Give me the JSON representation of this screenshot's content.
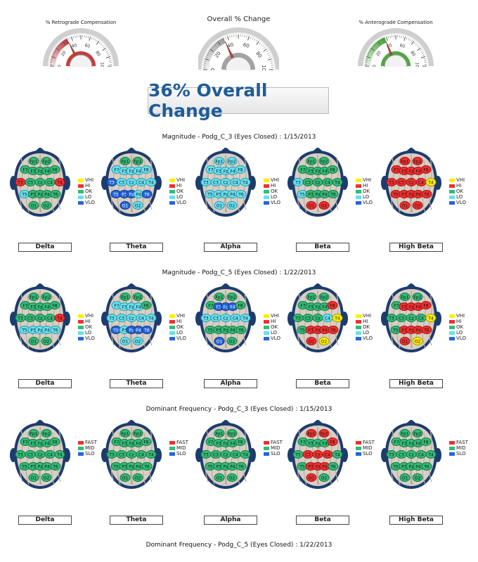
{
  "gauges": [
    {
      "id": "retro",
      "title": "% Retrograde Compensation",
      "ticks": [
        "0",
        "20",
        "40",
        "60",
        "80",
        "100"
      ],
      "value": 35,
      "color": "#c0282a"
    },
    {
      "id": "overall",
      "title": "Overall % Change",
      "ticks": [
        "0",
        "20",
        "40",
        "60",
        "80",
        "100"
      ],
      "value": 36,
      "color": "#999999"
    },
    {
      "id": "antero",
      "title": "% Anterograde Compensation",
      "ticks": [
        "0",
        "20",
        "40",
        "60",
        "80",
        "100"
      ],
      "value": 38,
      "color": "#3aa02a"
    }
  ],
  "banner": "36% Overall Change",
  "bands": [
    "Delta",
    "Theta",
    "Alpha",
    "Beta",
    "High Beta"
  ],
  "legend_mag": [
    {
      "label": "VHI",
      "color": "#ffee00"
    },
    {
      "label": "HI",
      "color": "#ee3030"
    },
    {
      "label": "OK",
      "color": "#33bb77"
    },
    {
      "label": "LO",
      "color": "#66e0f0"
    },
    {
      "label": "VLO",
      "color": "#2266dd"
    }
  ],
  "legend_freq": [
    {
      "label": "FAST",
      "color": "#ee3030"
    },
    {
      "label": "MID",
      "color": "#33bb77"
    },
    {
      "label": "SLO",
      "color": "#2266dd"
    }
  ],
  "electrodes": [
    "Fp1",
    "Fp2",
    "F7",
    "F3",
    "Fz",
    "F4",
    "F8",
    "T3",
    "C3",
    "Cz",
    "C4",
    "T4",
    "T5",
    "P3",
    "Pz",
    "P4",
    "T6",
    "O1",
    "O2"
  ],
  "sections": [
    {
      "title": "Magnitude - Podg_C_3 (Eyes Closed) : 1/15/2013",
      "legend": "mag",
      "heads": [
        {
          "state": {
            "T3": "H",
            "T4": "H",
            "T5": "L"
          }
        },
        {
          "state": {
            "F7": "L",
            "F3": "L",
            "Fz": "L",
            "F4": "L",
            "F8": "L",
            "T3": "V",
            "C3": "L",
            "Cz": "L",
            "C4": "L",
            "T4": "L",
            "T5": "V",
            "P3": "V",
            "Pz": "V",
            "P4": "L",
            "T6": "V",
            "O1": "V",
            "O2": "L"
          }
        },
        {
          "state": {
            "Fp1": "L",
            "Fp2": "L",
            "F7": "L",
            "F3": "L",
            "Fz": "L",
            "F4": "L",
            "F8": "L",
            "T3": "L",
            "C3": "L",
            "Cz": "L",
            "C4": "L",
            "T4": "L",
            "T5": "L",
            "P3": "L",
            "Pz": "L",
            "P4": "L",
            "T6": "L",
            "O1": "L",
            "O2": "L"
          }
        },
        {
          "state": {
            "T3": "L",
            "T5": "L",
            "O1": "H",
            "O2": "H"
          }
        },
        {
          "state": {
            "Fp1": "H",
            "Fp2": "H",
            "F7": "H",
            "F3": "H",
            "Fz": "H",
            "F4": "H",
            "F8": "H",
            "T3": "H",
            "C3": "H",
            "Cz": "H",
            "C4": "H",
            "T4": "Y",
            "T5": "H",
            "P3": "H",
            "Pz": "H",
            "P4": "H",
            "T6": "H",
            "O1": "H",
            "O2": "H"
          }
        }
      ]
    },
    {
      "title": "Magnitude - Podg_C_5 (Eyes Closed) : 1/22/2013",
      "legend": "mag",
      "heads": [
        {
          "state": {
            "T4": "H",
            "T5": "L",
            "P3": "L",
            "Pz": "L",
            "P4": "L",
            "T6": "L"
          }
        },
        {
          "state": {
            "F7": "L",
            "F3": "L",
            "Fz": "L",
            "F4": "L",
            "T3": "L",
            "C3": "L",
            "Cz": "L",
            "C4": "L",
            "T4": "L",
            "T5": "V",
            "P3": "L",
            "Pz": "V",
            "P4": "V",
            "T6": "V",
            "O1": "L",
            "O2": "L"
          }
        },
        {
          "state": {
            "F3": "V",
            "Fz": "V",
            "F4": "V",
            "T3": "L",
            "C3": "L",
            "Cz": "L",
            "C4": "L",
            "T4": "L",
            "O1": "V"
          }
        },
        {
          "state": {
            "F8": "H",
            "C4": "L",
            "T4": "Y",
            "P3": "H",
            "Pz": "H",
            "P4": "H",
            "T6": "H",
            "O1": "H",
            "O2": "Y"
          }
        },
        {
          "state": {
            "F3": "H",
            "Fz": "H",
            "F4": "H",
            "F8": "H",
            "T4": "Y",
            "P3": "H",
            "Pz": "H",
            "P4": "H",
            "T6": "H",
            "O1": "H",
            "O2": "Y"
          }
        }
      ]
    },
    {
      "title": "Dominant Frequency - Podg_C_3 (Eyes Closed) : 1/15/2013",
      "legend": "freq",
      "heads": [
        {
          "state": {}
        },
        {
          "state": {}
        },
        {
          "state": {}
        },
        {
          "state": {
            "Fp1": "H",
            "Fp2": "H",
            "F8": "H",
            "C3": "H",
            "Cz": "H",
            "C4": "H",
            "P3": "H",
            "Pz": "H",
            "P4": "H",
            "O1": "H"
          }
        },
        {
          "state": {}
        }
      ]
    },
    {
      "title": "Dominant Frequency - Podg_C_5 (Eyes Closed) : 1/22/2013",
      "legend": "freq",
      "heads": []
    }
  ]
}
